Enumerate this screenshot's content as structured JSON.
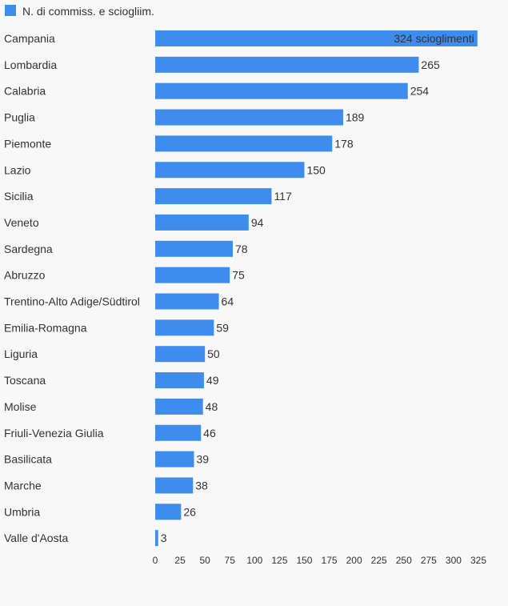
{
  "chart_data": {
    "type": "bar",
    "orientation": "horizontal",
    "legend": {
      "label": "N. di commiss. e sciogliim.",
      "color": "#3d8cee",
      "placement": "top-left"
    },
    "bar_color": "#3d8cee",
    "categories": [
      "Campania",
      "Lombardia",
      "Calabria",
      "Puglia",
      "Piemonte",
      "Lazio",
      "Sicilia",
      "Veneto",
      "Sardegna",
      "Abruzzo",
      "Trentino-Alto Adige/Südtirol",
      "Emilia-Romagna",
      "Liguria",
      "Toscana",
      "Molise",
      "Friuli-Venezia Giulia",
      "Basilicata",
      "Marche",
      "Umbria",
      "Valle d'Aosta"
    ],
    "series": [
      {
        "name": "N. di commiss. e sciogliim.",
        "values": [
          324,
          265,
          254,
          189,
          178,
          150,
          117,
          94,
          78,
          75,
          64,
          59,
          50,
          49,
          48,
          46,
          39,
          38,
          26,
          3
        ]
      }
    ],
    "data_labels": [
      "324 scioglimenti",
      "265",
      "254",
      "189",
      "178",
      "150",
      "117",
      "94",
      "78",
      "75",
      "64",
      "59",
      "50",
      "49",
      "48",
      "46",
      "39",
      "38",
      "26",
      "3"
    ],
    "xlim": [
      0,
      325
    ],
    "xticks": [
      0,
      25,
      50,
      75,
      100,
      125,
      150,
      175,
      200,
      225,
      250,
      275,
      300,
      325
    ],
    "grid": false
  }
}
